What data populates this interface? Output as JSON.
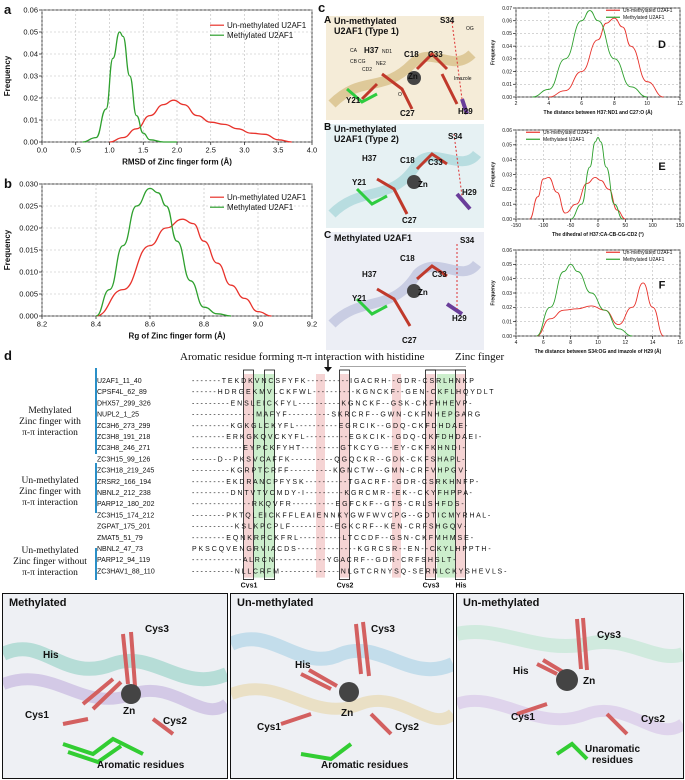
{
  "panels": {
    "a": "a",
    "b": "b",
    "c": "c",
    "d": "d"
  },
  "chart_data": [
    {
      "id": "a",
      "type": "line",
      "xlabel": "RMSD of Zinc finger form (Å)",
      "ylabel": "Frequency",
      "xlim": [
        0.0,
        4.0
      ],
      "ylim": [
        0.0,
        0.06
      ],
      "xticks": [
        "0.0",
        "0.5",
        "1.0",
        "1.5",
        "2.0",
        "2.5",
        "3.0",
        "3.5",
        "4.0"
      ],
      "yticks": [
        "0.00",
        "0.01",
        "0.02",
        "0.03",
        "0.04",
        "0.05",
        "0.06"
      ],
      "series": [
        {
          "name": "Un-methylated U2AF1",
          "color": "#e8322b",
          "x": [
            1.0,
            1.2,
            1.4,
            1.6,
            1.8,
            1.95,
            2.1,
            2.3,
            2.5,
            2.7,
            2.9,
            3.1,
            3.3,
            3.5,
            3.7
          ],
          "y": [
            0.0,
            0.002,
            0.006,
            0.012,
            0.017,
            0.019,
            0.017,
            0.012,
            0.009,
            0.008,
            0.006,
            0.004,
            0.0035,
            0.001,
            0.0
          ]
        },
        {
          "name": "Methylated U2AF1",
          "color": "#2ea02e",
          "x": [
            0.6,
            0.8,
            0.95,
            1.05,
            1.15,
            1.2,
            1.3,
            1.4,
            1.5,
            1.6,
            1.8,
            2.0
          ],
          "y": [
            0.0,
            0.002,
            0.015,
            0.038,
            0.05,
            0.048,
            0.03,
            0.012,
            0.004,
            0.001,
            0.0,
            0.0
          ]
        }
      ]
    },
    {
      "id": "b",
      "type": "line",
      "xlabel": "Rg of Zinc finger form (Å)",
      "ylabel": "Frequency",
      "xlim": [
        8.2,
        9.2
      ],
      "ylim": [
        0.0,
        0.03
      ],
      "xticks": [
        "8.2",
        "8.4",
        "8.6",
        "8.8",
        "9.0",
        "9.2"
      ],
      "yticks": [
        "0.000",
        "0.005",
        "0.010",
        "0.015",
        "0.020",
        "0.025",
        "0.030"
      ],
      "series": [
        {
          "name": "Un-methylated U2AF1",
          "color": "#e8322b",
          "x": [
            8.4,
            8.5,
            8.6,
            8.66,
            8.72,
            8.76,
            8.8,
            8.85,
            8.9,
            8.95,
            9.0,
            9.05
          ],
          "y": [
            0.0,
            0.006,
            0.016,
            0.02,
            0.022,
            0.021,
            0.017,
            0.012,
            0.007,
            0.004,
            0.001,
            0.0
          ]
        },
        {
          "name": "Methylated U2AF1",
          "color": "#2ea02e",
          "x": [
            8.4,
            8.45,
            8.5,
            8.55,
            8.6,
            8.63,
            8.66,
            8.7,
            8.75,
            8.8,
            8.85,
            8.9
          ],
          "y": [
            0.0,
            0.006,
            0.016,
            0.025,
            0.029,
            0.028,
            0.025,
            0.017,
            0.008,
            0.002,
            0.0005,
            0.0
          ]
        }
      ]
    },
    {
      "id": "D",
      "type": "line",
      "xlabel": "The distance between H37:ND1 and C27:O (Å)",
      "ylabel": "Frequency",
      "xlim": [
        2,
        12
      ],
      "ylim": [
        0.0,
        0.07
      ],
      "xticks": [
        "2",
        "4",
        "6",
        "8",
        "10",
        "12"
      ],
      "yticks": [
        "0.00",
        "0.01",
        "0.02",
        "0.03",
        "0.04",
        "0.05",
        "0.06",
        "0.07"
      ],
      "series": [
        {
          "name": "Un-methylated U2AF1",
          "color": "#e8322b",
          "x": [
            4,
            5,
            6,
            7,
            7.5,
            8,
            8.5,
            9,
            10,
            11
          ],
          "y": [
            0.0,
            0.005,
            0.02,
            0.045,
            0.058,
            0.062,
            0.055,
            0.04,
            0.012,
            0.0
          ]
        },
        {
          "name": "Methylated U2AF1",
          "color": "#2ea02e",
          "x": [
            3,
            4,
            5,
            6,
            6.5,
            7,
            8,
            9,
            10
          ],
          "y": [
            0.0,
            0.006,
            0.03,
            0.06,
            0.068,
            0.06,
            0.03,
            0.008,
            0.0
          ]
        }
      ]
    },
    {
      "id": "E",
      "type": "line",
      "xlabel": "The dihedral of H37:CA-CB-CG-CD2 (°)",
      "ylabel": "Frequency",
      "xlim": [
        -150,
        150
      ],
      "ylim": [
        0.0,
        0.06
      ],
      "xticks": [
        "-150",
        "-100",
        "-50",
        "0",
        "50",
        "100",
        "150"
      ],
      "yticks": [
        "0.00",
        "0.01",
        "0.02",
        "0.03",
        "0.04",
        "0.05",
        "0.06"
      ],
      "series": [
        {
          "name": "Un-methylated U2AF1",
          "color": "#e8322b",
          "x": [
            -125,
            -110,
            -100,
            -90,
            -75,
            -60,
            -40,
            -20,
            -5,
            5,
            20,
            35,
            50
          ],
          "y": [
            0.0,
            0.015,
            0.027,
            0.028,
            0.018,
            0.004,
            0.01,
            0.024,
            0.028,
            0.026,
            0.02,
            0.006,
            0.0
          ]
        },
        {
          "name": "Methylated U2AF1",
          "color": "#2ea02e",
          "x": [
            -50,
            -30,
            -15,
            -5,
            0,
            5,
            15,
            30,
            45
          ],
          "y": [
            0.0,
            0.01,
            0.035,
            0.052,
            0.055,
            0.052,
            0.035,
            0.01,
            0.0
          ]
        }
      ]
    },
    {
      "id": "F",
      "type": "line",
      "xlabel": "The distance between S34:OG and imazole of H29 (Å)",
      "ylabel": "Frequency",
      "xlim": [
        4,
        16
      ],
      "ylim": [
        0.0,
        0.06
      ],
      "xticks": [
        "4",
        "6",
        "8",
        "10",
        "12",
        "14",
        "16"
      ],
      "yticks": [
        "0.00",
        "0.01",
        "0.02",
        "0.03",
        "0.04",
        "0.05",
        "0.06"
      ],
      "series": [
        {
          "name": "Un-methylated U2AF1",
          "color": "#e8322b",
          "x": [
            5.5,
            6.5,
            7.5,
            8.5,
            9.5,
            10.5,
            11.5,
            12.5,
            13.3,
            14,
            14.8
          ],
          "y": [
            0.0,
            0.012,
            0.018,
            0.019,
            0.021,
            0.018,
            0.008,
            0.02,
            0.037,
            0.02,
            0.0
          ]
        },
        {
          "name": "Methylated U2AF1",
          "color": "#2ea02e",
          "x": [
            5.5,
            6.5,
            7.5,
            8,
            8.5,
            9.5,
            10.5,
            11.5,
            12.5
          ],
          "y": [
            0.0,
            0.02,
            0.045,
            0.05,
            0.045,
            0.03,
            0.018,
            0.005,
            0.0
          ]
        }
      ]
    }
  ],
  "panel_c": {
    "sub_a": {
      "letter": "A",
      "title_line1": "Un-methylated",
      "title_line2": "U2AF1 (Type 1)"
    },
    "sub_b": {
      "letter": "B",
      "title_line1": "Un-methylated",
      "title_line2": "U2AF1 (Type 2)"
    },
    "sub_c": {
      "letter": "C",
      "title_line1": "Methylated U2AF1"
    },
    "residues": {
      "s34": "S34",
      "og": "OG",
      "h37": "H37",
      "c18": "C18",
      "c33": "C33",
      "zn": "Zn",
      "y21": "Y21",
      "c27": "C27",
      "h29": "H29",
      "imazole": "Imazole",
      "ca": "CA",
      "cb": "CB",
      "cg": "CG",
      "nd1": "ND1",
      "ne2": "NE2",
      "cd2": "CD2",
      "o": "O"
    }
  },
  "alignment": {
    "header_left": "Aromatic residue forming π-π interaction with histidine",
    "header_right": "Zinc finger",
    "groups": [
      {
        "label": "Methylated\nZinc finger with\nπ-π interaction"
      },
      {
        "label": "Un-methylated\nZinc finger with\nπ-π interaction"
      },
      {
        "label": "Un-methylated\nZinc finger without\nπ-π interaction"
      }
    ],
    "rows": [
      {
        "name": "U2AF1_11_40",
        "seq": "- - - - - - - T E K D  K V N C S F Y F K - - - - - - - - - - I G A C R H - - G D R  - C S R L H N K P"
      },
      {
        "name": "CPSF4L_62_89",
        "seq": "- - - - - - H D R G E K  M V L C K F W L - - - - - - - - - - K G N C K F - - G E N  - C K F L H Q Y D   L T"
      },
      {
        "name": "DHX57_299_326",
        "seq": "- - - - - - - - - E N S  L E I C K F Y L - - - - - - - - - - K G N C K F - - G S K  - C K F H H E V P -"
      },
      {
        "name": "NUPL2_1_25",
        "seq": "- - - - - - - - - - - -  - - - M A F Y F - - - - - - - - - - S K R C R F - - G W N  - C K F N H E P G A   R G"
      },
      {
        "name": "ZC3H6_273_299",
        "seq": "- - - - - - - - - K G  K G L C K Y F L - - - - - - - - - - E G R C I K - - G D Q  - C K F D H D A E -"
      },
      {
        "name": "ZC3H8_191_218",
        "seq": "- - - - - - - - E R K G  K Q V C K Y F L - - - - - - - - - - E G K C I K - - G D Q  - C K F D H D A E   I -"
      },
      {
        "name": "ZC3H8_246_271",
        "seq": "- - - - - - - - - - - -  E Y P C K F Y H T - - - - - - - - - G T K C Y G - - - E Y  - C K F K H N D I -"
      },
      {
        "name": "ZC3H15_99_126",
        "seq": "- - - - - - D - - P K  S V C A F F K - - - - - - - - - - Q G Q C K R - - G D K  - C K F S H A P L -"
      },
      {
        "name": "ZC3H18_219_245",
        "seq": "- - - - - - - - - K G  R P T C R F F - - - - - - - - - - K G N C T W - - G M N  - C R F V H P G V -"
      },
      {
        "name": "ZRSR2_166_194",
        "seq": "- - - - - - - - E K D  R A N C P F Y S K - - - - - - - - - - T G A C R F - - G D R  - C S R K H N F P -"
      },
      {
        "name": "NBNL2_212_238",
        "seq": "- - - - - - - - - D N T  V T V C M D Y - I - - - - - - - - - K G R C M R - - E K -  - C K Y F H P P A -"
      },
      {
        "name": "PARP12_180_202",
        "seq": "- - - - - - - - - - - -  - - R K Q V F R - - - - - - - - - - E G F C K F - - G T S  - C R L S H F D S -"
      },
      {
        "name": "ZC3H15_174_212",
        "seq": "- - - - - - - - P K T  Q L E I C K F F L E A   I E N N K Y G W F W V C P G - - G D T  I C M Y R H A L -"
      },
      {
        "name": "ZGPAT_175_201",
        "seq": "- - - - - - - - - - K S  L K P C P L F - - - - - - - - - - E G K C R F - - K E N  - C R F S H G Q V -"
      },
      {
        "name": "ZMAT5_51_79",
        "seq": "- - - - - - - - E Q N  K R P C K F R L - - - - - - - - - - L T C C D F - - G S N  - C K F M H M S E -"
      },
      {
        "name": "NBNL2_47_73",
        "seq": "P K S C Q V E N G R V I  A C D S - - - - - - - - - - - - - - K G R C S R - - E N -  - C K Y L H P P T   H -"
      },
      {
        "name": "PARP12_94_119",
        "seq": "- - - - - - - - - - - -  A L R C N - - - - - - - - - - - - Y G A C R F - - G D R  - C R F S H S L T -"
      },
      {
        "name": "ZC3HAV1_88_110",
        "seq": "- - - - - - - - - - N L  L C R F M - - - - - - - - - - - - - - N L G T C R N Y S Q - S E R  N L C K Y S H E V L   S -"
      }
    ],
    "footer": {
      "cys1": "Cys1",
      "cys2": "Cys2",
      "cys3": "Cys3",
      "his": "His"
    }
  },
  "bottom_panels": [
    {
      "title": "Methylated",
      "labels": {
        "his": "His",
        "cys3": "Cys3",
        "zn": "Zn",
        "cys1": "Cys1",
        "cys2": "Cys2",
        "aro": "Aromatic residues"
      }
    },
    {
      "title": "Un-methylated",
      "labels": {
        "his": "His",
        "cys3": "Cys3",
        "zn": "Zn",
        "cys1": "Cys1",
        "cys2": "Cys2",
        "aro": "Aromatic residues"
      }
    },
    {
      "title": "Un-methylated",
      "labels": {
        "his": "His",
        "cys3": "Cys3",
        "zn": "Zn",
        "cys1": "Cys1",
        "cys2": "Cys2",
        "aro1": "Unaromatic",
        "aro2": "residues"
      }
    }
  ]
}
